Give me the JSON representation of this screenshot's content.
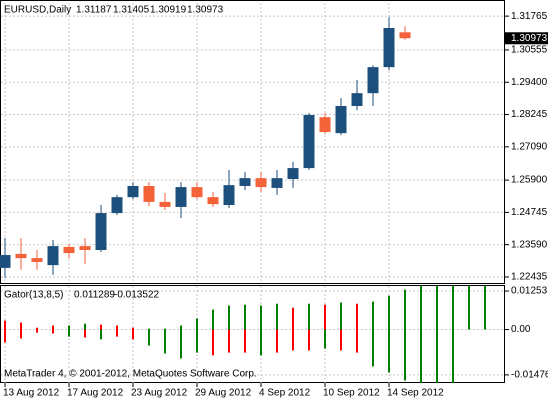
{
  "chart_data": [
    {
      "type": "candlestick",
      "title": "EURUSD,Daily",
      "categories": [
        "13 Aug 2012",
        null,
        null,
        null,
        "17 Aug 2012",
        null,
        null,
        null,
        "23 Aug 2012",
        null,
        null,
        null,
        "29 Aug 2012",
        null,
        null,
        null,
        "4 Sep 2012",
        null,
        null,
        null,
        "10 Sep 2012",
        null,
        null,
        null,
        "14 Sep 2012",
        null
      ],
      "open": [
        1.2276,
        1.2326,
        1.2311,
        1.2286,
        1.2351,
        1.2354,
        1.234,
        1.2472,
        1.2529,
        1.2569,
        1.2512,
        1.2494,
        1.2565,
        1.2529,
        1.2501,
        1.2569,
        1.2597,
        1.2562,
        1.2594,
        1.2633,
        1.2815,
        1.2758,
        1.2855,
        1.2901,
        1.2994,
        1.31187
      ],
      "high": [
        1.2383,
        1.2383,
        1.234,
        1.2376,
        1.2361,
        1.2383,
        1.2501,
        1.2537,
        1.2583,
        1.2583,
        1.2544,
        1.2583,
        1.2583,
        1.2547,
        1.2626,
        1.2619,
        1.2619,
        1.2626,
        1.2655,
        1.283,
        1.283,
        1.2883,
        1.2948,
        1.3001,
        1.3173,
        1.31405
      ],
      "low": [
        1.224,
        1.2269,
        1.2269,
        1.2251,
        1.2311,
        1.229,
        1.2333,
        1.2465,
        1.2522,
        1.2497,
        1.2483,
        1.2454,
        1.2522,
        1.2494,
        1.249,
        1.2554,
        1.2547,
        1.2537,
        1.2562,
        1.2626,
        1.2755,
        1.2751,
        1.284,
        1.2855,
        1.2983,
        1.30919
      ],
      "close": [
        1.2322,
        1.2311,
        1.2297,
        1.2354,
        1.2329,
        1.234,
        1.2472,
        1.2529,
        1.2569,
        1.2512,
        1.2494,
        1.2565,
        1.2529,
        1.2504,
        1.2572,
        1.2597,
        1.2565,
        1.2597,
        1.2633,
        1.2823,
        1.2762,
        1.2855,
        1.2901,
        1.2994,
        1.3134,
        1.30973
      ],
      "up_color": "#1d4f7c",
      "down_color": "#f4623a",
      "ylim": [
        1.2222,
        1.3227
      ],
      "yticks": [
        1.31765,
        1.30555,
        {
          "value": 1.294,
          "label": "1.29400"
        },
        1.28245,
        {
          "value": 1.2709,
          "label": "1.27090"
        },
        {
          "value": 1.259,
          "label": "1.25900"
        },
        1.24745,
        {
          "value": 1.2359,
          "label": "1.23590"
        },
        1.22435
      ],
      "grid": true
    },
    {
      "type": "gator",
      "title": "Gator(13,8,5)",
      "header_values": [
        0.011289,
        -0.013522
      ],
      "upper_values": [
        0.0029,
        0.0023,
        0.0006,
        0.0013,
        0.0013,
        0.0019,
        0.0016,
        0.0013,
        0.0006,
        0.0003,
        0.0003,
        0.0013,
        0.0036,
        0.0065,
        0.0078,
        0.0081,
        0.0078,
        0.0084,
        0.0071,
        0.0084,
        0.0081,
        0.0088,
        0.0084,
        0.0091,
        0.011,
        0.013,
        0.016,
        0.0165,
        0.015,
        0.0143,
        0.0143
      ],
      "upper_colors": [
        "#ff0000",
        "#ff0000",
        "#ff0000",
        "#ff0000",
        "#008000",
        "#008000",
        "#ff0000",
        "#ff0000",
        "#ff0000",
        "#008000",
        "#008000",
        "#008000",
        "#008000",
        "#008000",
        "#008000",
        "#008000",
        "#008000",
        "#008000",
        "#ff0000",
        "#008000",
        "#ff0000",
        "#008000",
        "#ff0000",
        "#008000",
        "#008000",
        "#008000",
        "#008000",
        "#008000",
        "#008000",
        "#008000",
        "#008000"
      ],
      "lower_values": [
        -0.0042,
        -0.0029,
        -0.001,
        -0.0013,
        -0.0023,
        -0.0026,
        -0.0032,
        -0.0023,
        -0.0032,
        -0.0052,
        -0.0078,
        -0.0094,
        -0.0075,
        -0.0084,
        -0.0075,
        -0.0075,
        -0.0084,
        -0.0075,
        -0.0068,
        -0.0068,
        -0.0062,
        -0.0068,
        -0.0075,
        -0.012,
        -0.014,
        -0.0166,
        -0.0175,
        -0.0175,
        -0.0175,
        null,
        null
      ],
      "lower_colors": [
        "#ff0000",
        "#ff0000",
        "#ff0000",
        "#ff0000",
        "#008000",
        "#ff0000",
        "#008000",
        "#ff0000",
        "#ff0000",
        "#008000",
        "#008000",
        "#008000",
        "#008000",
        "#ff0000",
        "#ff0000",
        "#ff0000",
        "#008000",
        "#ff0000",
        "#ff0000",
        "#ff0000",
        "#008000",
        "#ff0000",
        "#ff0000",
        "#008000",
        "#008000",
        "#008000",
        "#008000",
        "#008000",
        "#008000",
        "#008000",
        "#008000"
      ],
      "ylim": [
        -0.0174,
        0.0145
      ],
      "yticks": [
        0.01253,
        {
          "value": 0,
          "label": "0.00"
        },
        -0.01476
      ],
      "annotation": "MetaTrader 4, © 2001-2012, MetaQuotes Software Corp.",
      "grid": true
    }
  ]
}
